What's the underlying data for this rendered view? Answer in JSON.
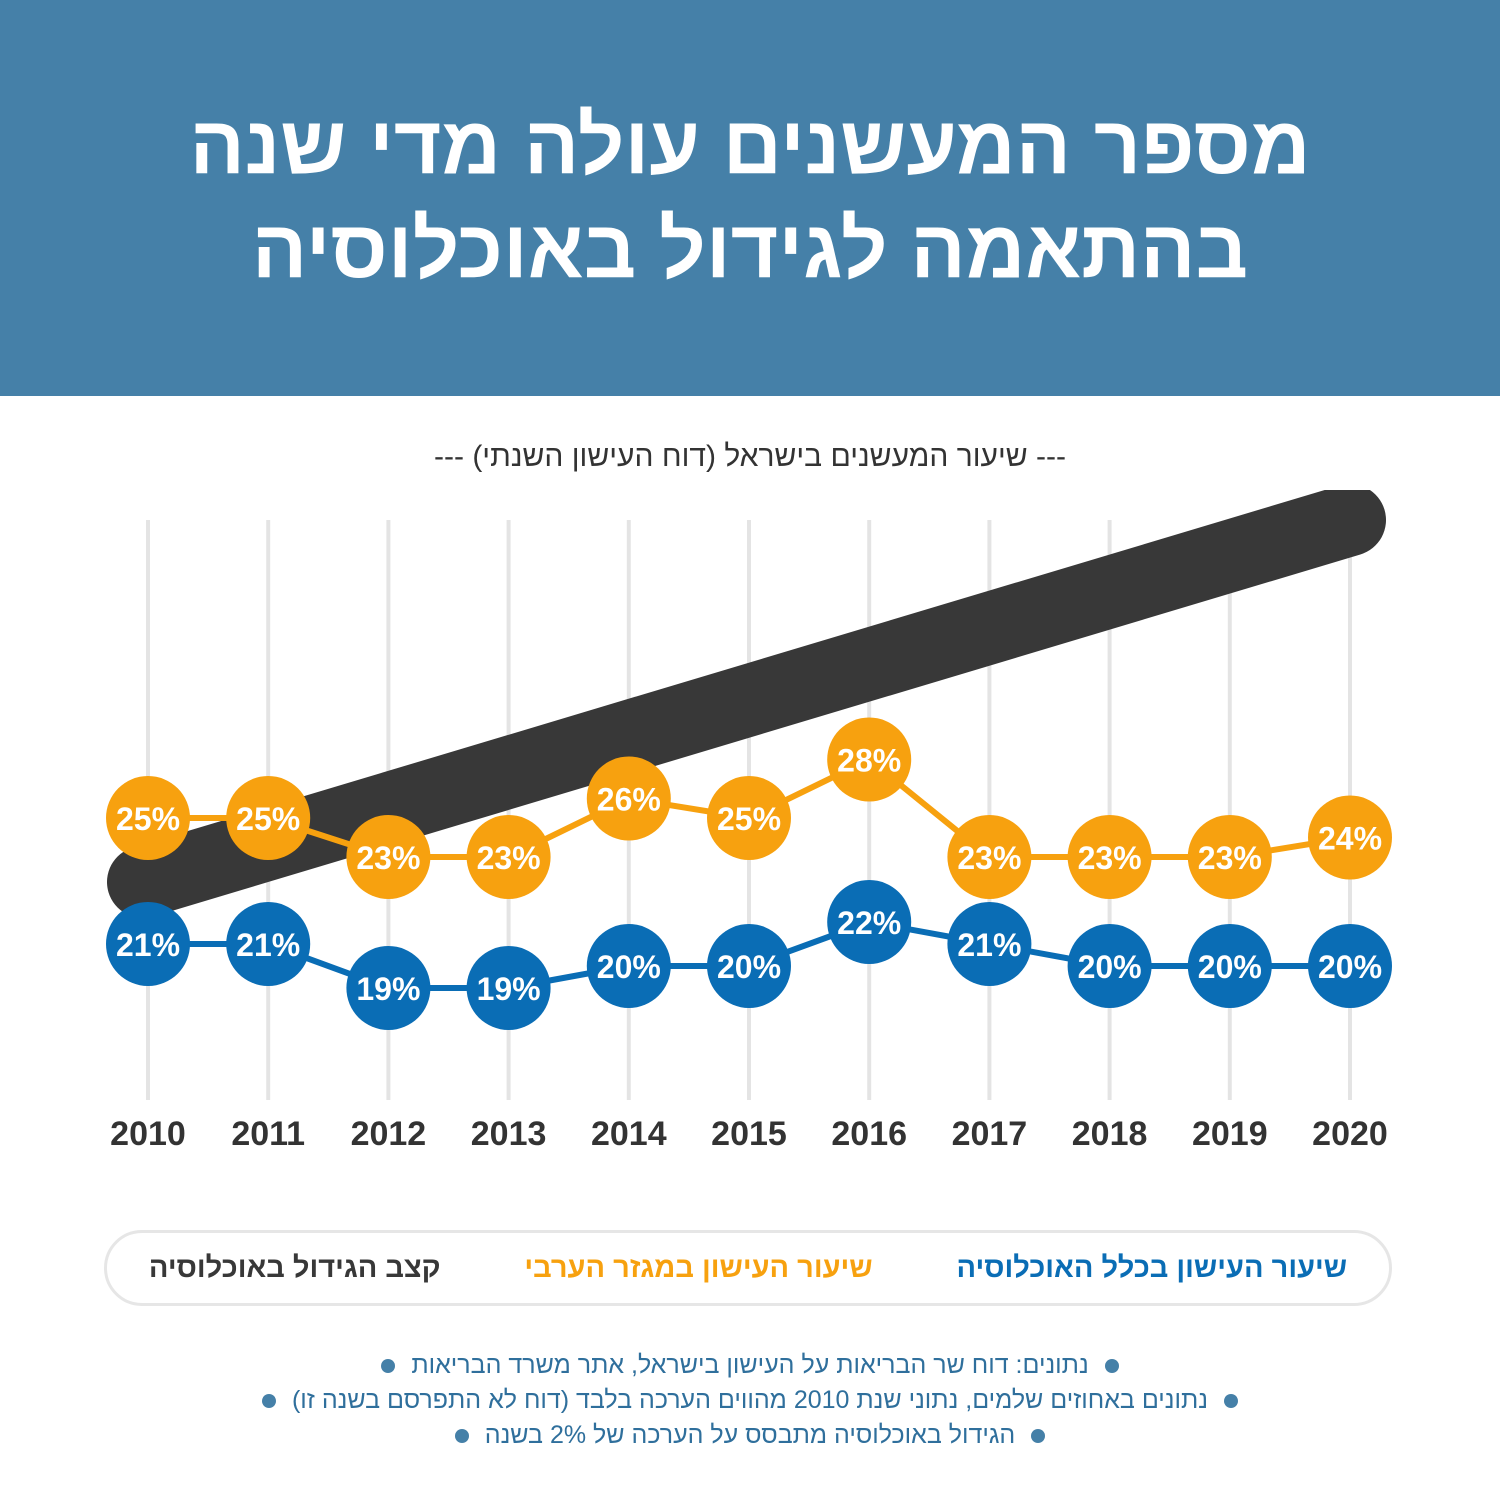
{
  "header": {
    "title_line1": "מספר המעשנים עולה מדי שנה",
    "title_line2": "בהתאמה לגידול באוכלוסיה"
  },
  "subtitle": "--- שיעור המעשנים בישראל (דוח העישון השנתי) ---",
  "colors": {
    "header_bg": "#4580a8",
    "orange": "#f7a10f",
    "blue": "#0a6db5",
    "dark": "#383838",
    "grid": "#e4e4e4"
  },
  "chart_data": {
    "type": "line",
    "x": [
      "2010",
      "2011",
      "2012",
      "2013",
      "2014",
      "2015",
      "2016",
      "2017",
      "2018",
      "2019",
      "2020"
    ],
    "series": [
      {
        "name": "שיעור העישון במגזר הערבי",
        "color": "#f7a10f",
        "values": [
          25,
          25,
          23,
          23,
          26,
          25,
          28,
          23,
          23,
          23,
          24
        ],
        "labels": [
          "25%",
          "25%",
          "23%",
          "23%",
          "26%",
          "25%",
          "28%",
          "23%",
          "23%",
          "23%",
          "24%"
        ]
      },
      {
        "name": "שיעור העישון בכלל האוכלוסיה",
        "color": "#0a6db5",
        "values": [
          21,
          21,
          19,
          19,
          20,
          20,
          22,
          21,
          20,
          20,
          20
        ],
        "labels": [
          "21%",
          "21%",
          "19%",
          "19%",
          "20%",
          "20%",
          "22%",
          "21%",
          "20%",
          "20%",
          "20%"
        ]
      },
      {
        "name": "קצב הגידול באוכלוסיה",
        "color": "#383838",
        "trend": "linear increase (2% per year)"
      }
    ],
    "title": "שיעור המעשנים בישראל (דוח העישון השנתי)",
    "xlabel": "",
    "ylabel": "",
    "grid": "vertical"
  },
  "legend": {
    "population_growth": "קצב הגידול באוכלוסיה",
    "arab_sector": "שיעור העישון במגזר הערבי",
    "general_population": "שיעור העישון בכלל האוכלוסיה"
  },
  "notes": [
    "נתונים: דוח שר הבריאות על העישון בישראל, אתר משרד הבריאות",
    "נתונים באחוזים שלמים, נתוני שנת 2010 מהווים הערכה בלבד (דוח לא התפרסם בשנה זו)",
    "הגידול באוכלוסיה מתבסס על הערכה של 2% בשנה"
  ]
}
